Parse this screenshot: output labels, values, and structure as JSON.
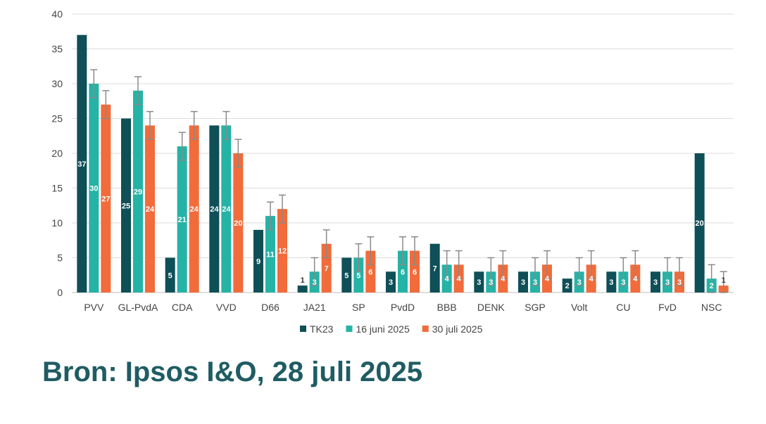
{
  "chart_data": {
    "type": "bar",
    "categories": [
      "PVV",
      "GL-PvdA",
      "CDA",
      "VVD",
      "D66",
      "JA21",
      "SP",
      "PvdD",
      "BBB",
      "DENK",
      "SGP",
      "Volt",
      "CU",
      "FvD",
      "NSC"
    ],
    "ylim": [
      0,
      40
    ],
    "yticks": [
      0,
      5,
      10,
      15,
      20,
      25,
      30,
      35,
      40
    ],
    "grid": true,
    "legend_position": "bottom",
    "series": [
      {
        "name": "TK23",
        "color": "#0f4f57",
        "values": [
          37,
          25,
          5,
          24,
          9,
          1,
          5,
          3,
          7,
          3,
          3,
          2,
          3,
          3,
          20
        ],
        "error_bars": false
      },
      {
        "name": "16 juni 2025",
        "color": "#25b3a6",
        "values": [
          30,
          29,
          21,
          24,
          11,
          3,
          5,
          6,
          4,
          3,
          3,
          3,
          3,
          3,
          2
        ],
        "error_bars": true
      },
      {
        "name": "30 juli 2025",
        "color": "#f26b3a",
        "values": [
          27,
          24,
          24,
          20,
          12,
          7,
          6,
          6,
          4,
          4,
          4,
          4,
          4,
          3,
          1
        ],
        "error_bars": true
      }
    ],
    "error_bar_color": "#8a8a8a",
    "error_margin": 2
  },
  "source": "Bron: Ipsos I&O, 28 juli 2025"
}
